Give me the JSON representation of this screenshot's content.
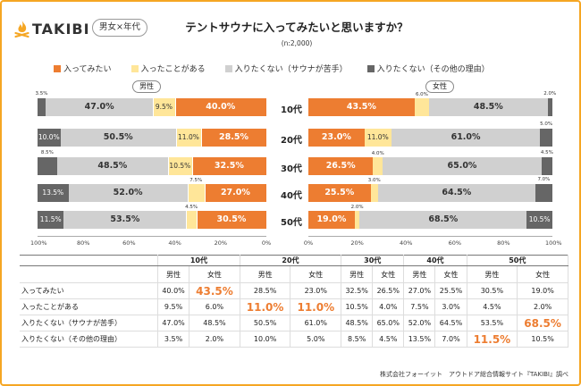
{
  "brand": {
    "name": "TAKIBI",
    "badge": "男女×年代",
    "accent": "#F5A623"
  },
  "title": "テントサウナに入ってみたいと思いますか？",
  "sample": "(n:2,000)",
  "source": "株式会社フォーイット　アウトドア総合情報サイト『TAKIBI』調べ",
  "chart_data": {
    "type": "bar",
    "orientation": "horizontal",
    "stacked": true,
    "layout": "butterfly",
    "categories": [
      "10代",
      "20代",
      "30代",
      "40代",
      "50代"
    ],
    "xlim": [
      0,
      100
    ],
    "ticks": [
      "100%",
      "80%",
      "60%",
      "40%",
      "20%",
      "0%",
      "0%",
      "20%",
      "40%",
      "60%",
      "80%",
      "100%"
    ],
    "series_order": [
      "入ってみたい",
      "入ったことがある",
      "入りたくない（サウナが苦手）",
      "入りたくない（その他の理由）"
    ],
    "colors": [
      "#ED7D31",
      "#FFE699",
      "#D0D0D0",
      "#666666"
    ],
    "panels": [
      {
        "name": "男性",
        "direction": "right-to-left",
        "values": [
          [
            40.0,
            9.5,
            47.0,
            3.5
          ],
          [
            28.5,
            11.0,
            50.5,
            10.0
          ],
          [
            32.5,
            10.5,
            48.5,
            8.5
          ],
          [
            27.0,
            7.5,
            52.0,
            13.5
          ],
          [
            30.5,
            4.5,
            53.5,
            11.5
          ]
        ],
        "labels": [
          [
            "40.0%",
            "9.5%",
            "47.0%",
            "3.5%"
          ],
          [
            "28.5%",
            "11.0%",
            "50.5%",
            "10.0%"
          ],
          [
            "32.5%",
            "10.5%",
            "48.5%",
            "8.5%"
          ],
          [
            "27.0%",
            "7.5%",
            "52.0%",
            "13.5%"
          ],
          [
            "30.5%",
            "4.5%",
            "53.5%",
            "11.5%"
          ]
        ]
      },
      {
        "name": "女性",
        "direction": "left-to-right",
        "values": [
          [
            43.5,
            6.0,
            48.5,
            2.0
          ],
          [
            23.0,
            11.0,
            61.0,
            5.0
          ],
          [
            26.5,
            4.0,
            65.0,
            4.5
          ],
          [
            25.5,
            3.0,
            64.5,
            7.0
          ],
          [
            19.0,
            2.0,
            68.5,
            10.5
          ]
        ],
        "labels": [
          [
            "43.5%",
            "6.0%",
            "48.5%",
            "2.0%"
          ],
          [
            "23.0%",
            "11.0%",
            "61.0%",
            "5.0%"
          ],
          [
            "26.5%",
            "4.0%",
            "65.0%",
            "4.5%"
          ],
          [
            "25.5%",
            "3.0%",
            "64.5%",
            "7.0%"
          ],
          [
            "19.0%",
            "2.0%",
            "68.5%",
            "10.5%"
          ]
        ]
      }
    ]
  },
  "table": {
    "ages": [
      "10代",
      "20代",
      "30代",
      "40代",
      "50代"
    ],
    "sexes": [
      "男性",
      "女性"
    ],
    "rows": [
      {
        "label": "入ってみたい",
        "cells": [
          "40.0%",
          "43.5%",
          "28.5%",
          "23.0%",
          "32.5%",
          "26.5%",
          "27.0%",
          "25.5%",
          "30.5%",
          "19.0%"
        ],
        "highlight": [
          1
        ]
      },
      {
        "label": "入ったことがある",
        "cells": [
          "9.5%",
          "6.0%",
          "11.0%",
          "11.0%",
          "10.5%",
          "4.0%",
          "7.5%",
          "3.0%",
          "4.5%",
          "2.0%"
        ],
        "highlight": [
          2,
          3
        ]
      },
      {
        "label": "入りたくない（サウナが苦手）",
        "cells": [
          "47.0%",
          "48.5%",
          "50.5%",
          "61.0%",
          "48.5%",
          "65.0%",
          "52.0%",
          "64.5%",
          "53.5%",
          "68.5%"
        ],
        "highlight": [
          9
        ]
      },
      {
        "label": "入りたくない（その他の理由）",
        "cells": [
          "3.5%",
          "2.0%",
          "10.0%",
          "5.0%",
          "8.5%",
          "4.5%",
          "13.5%",
          "7.0%",
          "11.5%",
          "10.5%"
        ],
        "highlight": [
          8
        ]
      }
    ]
  }
}
